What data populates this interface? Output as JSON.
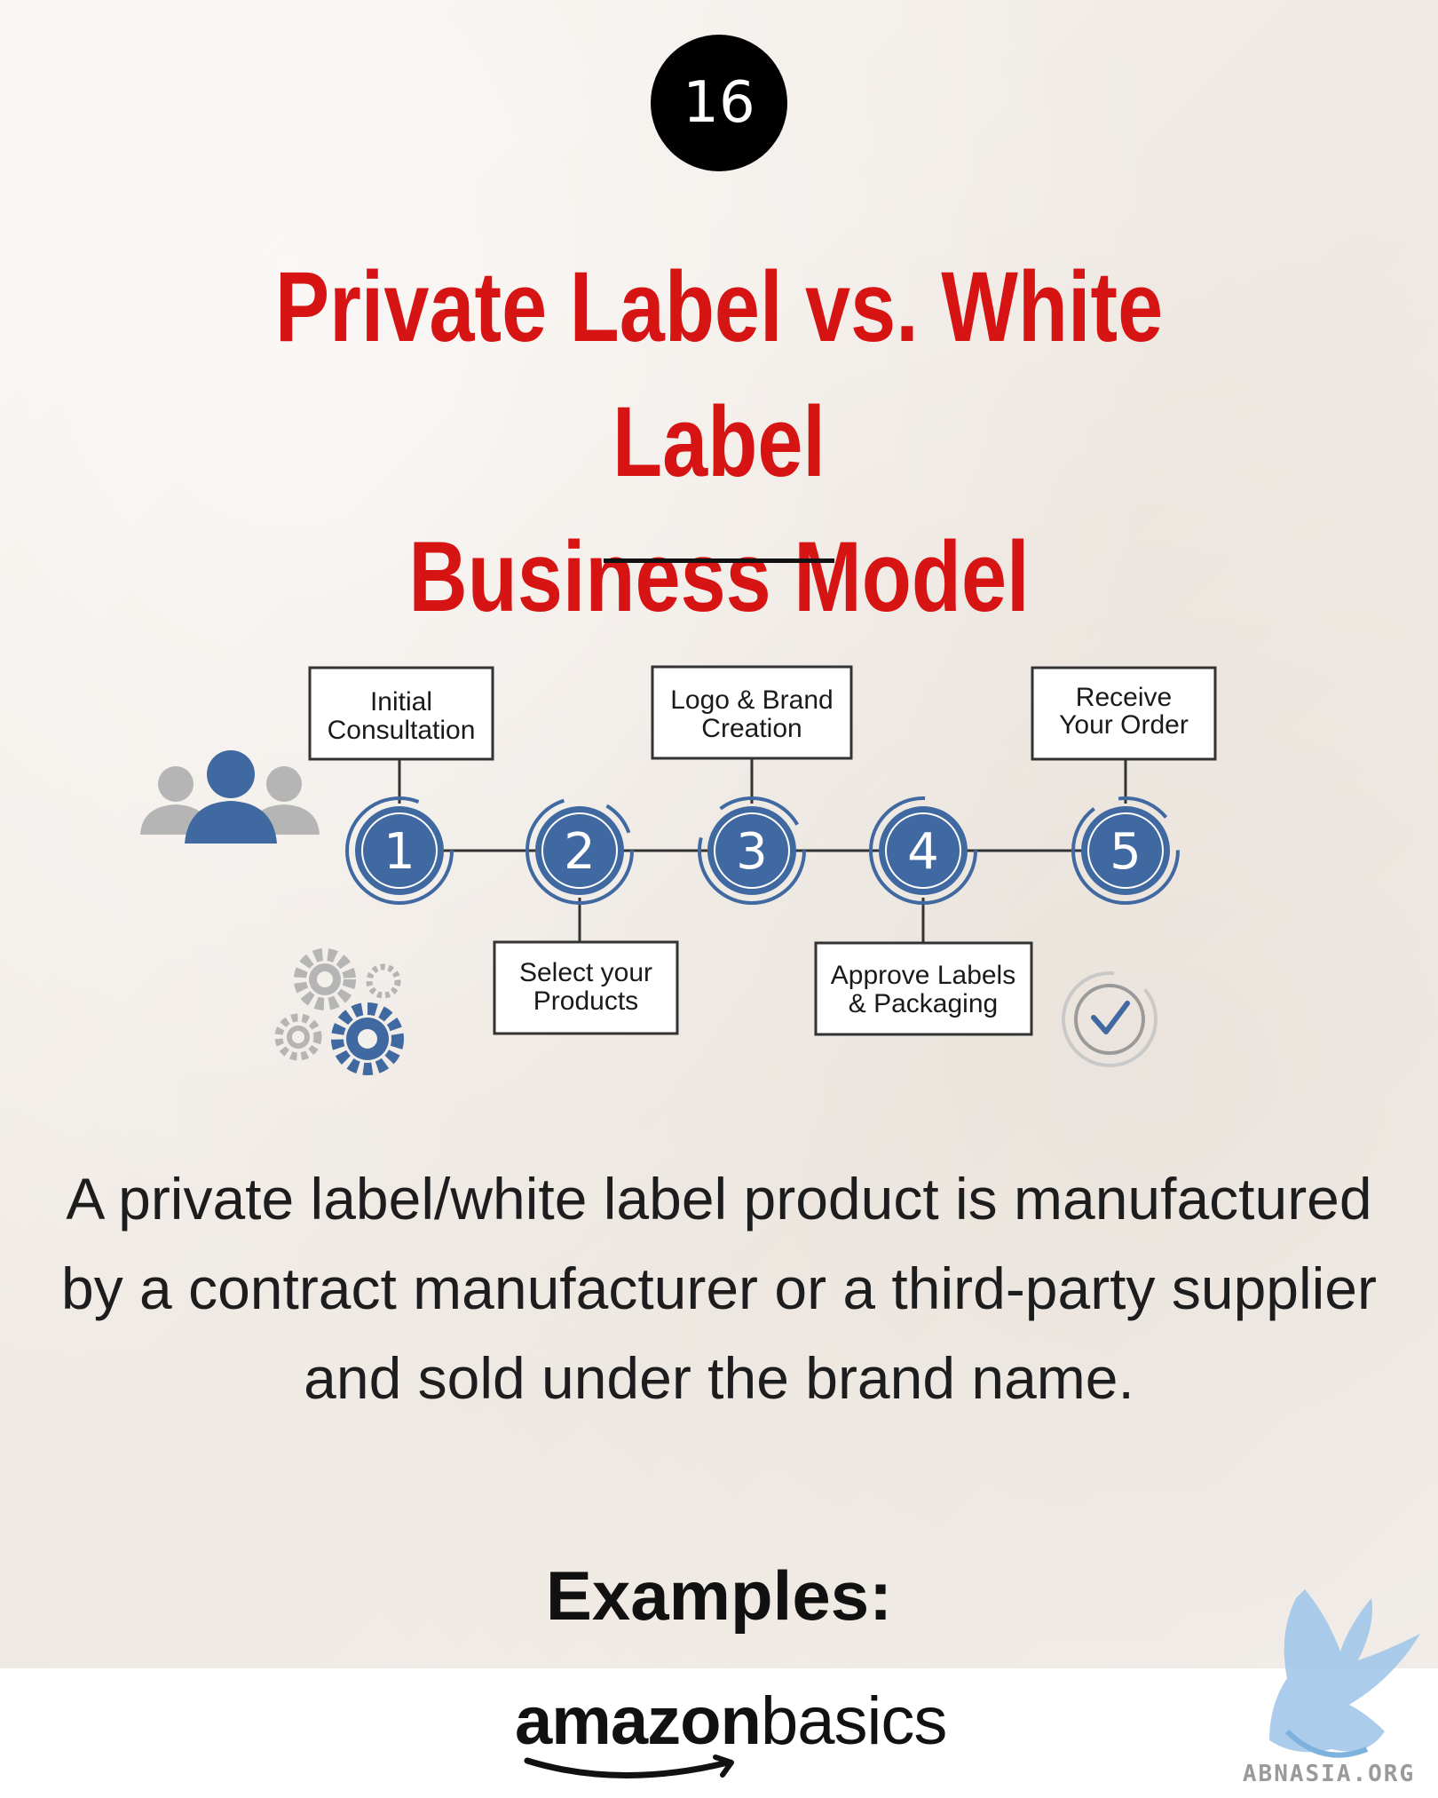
{
  "page_number": "16",
  "title": {
    "line1": "Private Label vs. White Label",
    "line2": "Business Model"
  },
  "diagram": {
    "steps": [
      {
        "number": "1",
        "label_lines": [
          "Initial",
          "Consultation"
        ]
      },
      {
        "number": "2",
        "label_lines": [
          "Select your",
          "Products"
        ]
      },
      {
        "number": "3",
        "label_lines": [
          "Logo & Brand",
          "Creation"
        ]
      },
      {
        "number": "4",
        "label_lines": [
          "Approve Labels",
          "& Packaging"
        ]
      },
      {
        "number": "5",
        "label_lines": [
          "Receive",
          "Your Order"
        ]
      }
    ],
    "icons": [
      "people-icon",
      "gears-icon",
      "checkmark-icon"
    ],
    "colors": {
      "accent": "#3f69a0",
      "grey": "#b5b5b5",
      "line": "#333333"
    }
  },
  "description": "A private label/white label product is manufactured by a contract manufacturer or a third-party supplier and sold under the brand name.",
  "examples_heading": "Examples:",
  "brand_logo": {
    "part1": "amazon",
    "part2": "basics"
  },
  "watermark": {
    "text": "ABNASIA.ORG"
  },
  "colors": {
    "title": "#d71414",
    "background": "#f3efeb"
  }
}
